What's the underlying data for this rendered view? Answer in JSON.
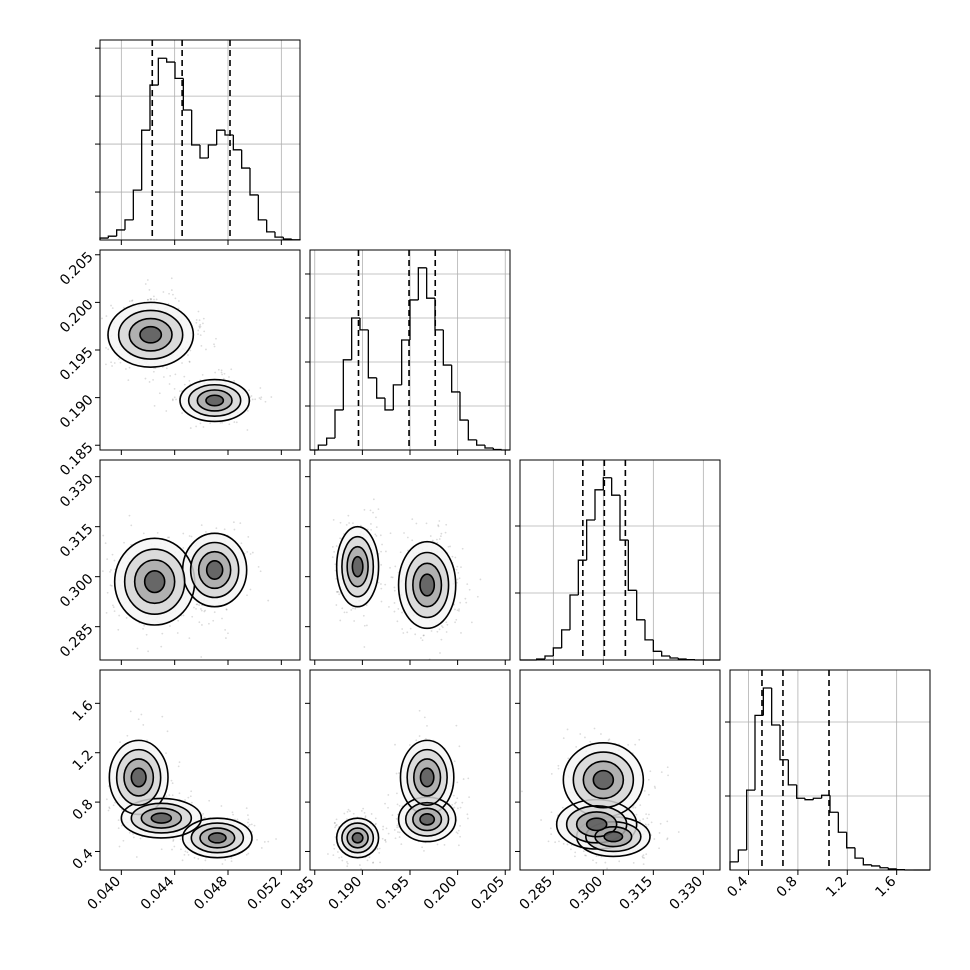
{
  "chart_data": {
    "type": "corner",
    "axes": [
      {
        "lim": [
          0.0384,
          0.0534
        ],
        "ticks": [
          {
            "value": 0.04,
            "label": "0.040"
          },
          {
            "value": 0.044,
            "label": "0.044"
          },
          {
            "value": 0.048,
            "label": "0.048"
          },
          {
            "value": 0.052,
            "label": "0.052"
          }
        ]
      },
      {
        "lim": [
          0.1845,
          0.2055
        ],
        "ticks": [
          0.185,
          {
            "value": 0.19,
            "label": "0.190"
          },
          0.195,
          {
            "value": 0.2,
            "label": "0.200"
          },
          0.205
        ]
      },
      {
        "lim": [
          0.275,
          0.335
        ],
        "ticks": [
          0.285,
          {
            "value": 0.3,
            "label": "0.300"
          },
          0.315,
          {
            "value": 0.33,
            "label": "0.330"
          }
        ]
      },
      {
        "lim": [
          0.25,
          1.87
        ],
        "ticks": [
          0.4,
          0.8,
          1.2,
          1.6
        ]
      }
    ],
    "histograms": [
      {
        "bins": [
          0.0384,
          0.039025,
          0.03965,
          0.040275,
          0.0409,
          0.041525,
          0.04215,
          0.042775,
          0.0434,
          0.044025,
          0.04465,
          0.045275,
          0.0459,
          0.046525,
          0.04715,
          0.047775,
          0.0484,
          0.049025,
          0.04965,
          0.050275,
          0.0509,
          0.051525,
          0.05215,
          0.052775,
          0.0534
        ],
        "counts": [
          40,
          80,
          210,
          420,
          1040,
          2290,
          3230,
          3790,
          3710,
          3370,
          2710,
          1980,
          1710,
          1980,
          2290,
          2190,
          1880,
          1500,
          940,
          420,
          170,
          60,
          20,
          5
        ],
        "ylim": [
          0,
          4170
        ],
        "yticks": [
          1000,
          2000,
          3000,
          4000
        ],
        "quantiles": [
          0.04232,
          0.04456,
          0.04815
        ]
      },
      {
        "bins": [
          0.1845,
          0.185375,
          0.18625,
          0.187125,
          0.188,
          0.188875,
          0.18975,
          0.190625,
          0.1915,
          0.192375,
          0.19325,
          0.194125,
          0.195,
          0.195875,
          0.19675,
          0.197625,
          0.1985,
          0.199375,
          0.20025,
          0.201125,
          0.202,
          0.202875,
          0.20375,
          0.204625,
          0.2055
        ],
        "counts": [
          0,
          110,
          270,
          910,
          2050,
          3000,
          2730,
          1640,
          1180,
          910,
          1480,
          2500,
          3410,
          4140,
          3450,
          2730,
          1930,
          1320,
          680,
          230,
          110,
          45,
          10,
          0
        ],
        "ylim": [
          0,
          4545
        ],
        "yticks": [
          1000,
          2000,
          3000,
          4000
        ],
        "quantiles": [
          0.18959,
          0.1949,
          0.19765
        ]
      },
      {
        "bins": [
          0.275,
          0.2775,
          0.28,
          0.2825,
          0.285,
          0.2875,
          0.29,
          0.2925,
          0.295,
          0.2975,
          0.3,
          0.3025,
          0.305,
          0.3075,
          0.31,
          0.3125,
          0.315,
          0.3175,
          0.32,
          0.3225,
          0.325,
          0.3275,
          0.33,
          0.3325,
          0.335
        ],
        "counts": [
          0,
          0,
          15,
          60,
          180,
          450,
          970,
          1490,
          2090,
          2540,
          2720,
          2460,
          1790,
          1040,
          600,
          300,
          130,
          60,
          30,
          15,
          5,
          0,
          0,
          0
        ],
        "ylim": [
          0,
          2985
        ],
        "yticks": [
          1000,
          2000
        ],
        "quantiles": [
          0.29385,
          0.3003,
          0.30661
        ]
      },
      {
        "bins": [
          0.25,
          0.3175,
          0.385,
          0.4525,
          0.52,
          0.5875,
          0.655,
          0.7225,
          0.79,
          0.8575,
          0.925,
          0.9925,
          1.06,
          1.1275,
          1.195,
          1.2625,
          1.33,
          1.3975,
          1.465,
          1.5325,
          1.6,
          1.6675,
          1.735,
          1.8025,
          1.87
        ],
        "counts": [
          110,
          270,
          1080,
          2090,
          2460,
          1960,
          1490,
          1150,
          970,
          950,
          970,
          1010,
          780,
          510,
          300,
          160,
          70,
          55,
          30,
          15,
          5,
          0,
          0,
          0
        ],
        "ylim": [
          0,
          2703
        ],
        "yticks": [
          1000,
          2000
        ],
        "quantiles": [
          0.509,
          0.679,
          1.052
        ]
      }
    ],
    "panels": [
      {
        "clusters": [
          {
            "x": 0.0422,
            "y": 0.1966,
            "sx": 0.0016,
            "sy": 0.0017,
            "weight": 0.6
          },
          {
            "x": 0.047,
            "y": 0.1897,
            "sx": 0.0013,
            "sy": 0.0011,
            "weight": 0.4
          }
        ]
      },
      {
        "clusters": [
          {
            "x": 0.0425,
            "y": 0.2985,
            "sx": 0.0015,
            "sy": 0.0065,
            "weight": 0.6
          },
          {
            "x": 0.047,
            "y": 0.302,
            "sx": 0.0012,
            "sy": 0.0055,
            "weight": 0.4
          }
        ]
      },
      {
        "clusters": [
          {
            "x": 0.1895,
            "y": 0.303,
            "sx": 0.0011,
            "sy": 0.006,
            "weight": 0.4
          },
          {
            "x": 0.1968,
            "y": 0.2975,
            "sx": 0.0015,
            "sy": 0.0065,
            "weight": 0.6
          }
        ]
      },
      {
        "clusters": [
          {
            "x": 0.0413,
            "y": 1.0,
            "sx": 0.0011,
            "sy": 0.15,
            "weight": 0.25
          },
          {
            "x": 0.043,
            "y": 0.67,
            "sx": 0.0015,
            "sy": 0.08,
            "weight": 0.35
          },
          {
            "x": 0.0472,
            "y": 0.51,
            "sx": 0.0013,
            "sy": 0.08,
            "weight": 0.4
          }
        ]
      },
      {
        "clusters": [
          {
            "x": 0.1895,
            "y": 0.51,
            "sx": 0.0011,
            "sy": 0.08,
            "weight": 0.4
          },
          {
            "x": 0.1968,
            "y": 0.66,
            "sx": 0.0015,
            "sy": 0.09,
            "weight": 0.35
          },
          {
            "x": 0.1968,
            "y": 1.0,
            "sx": 0.0014,
            "sy": 0.15,
            "weight": 0.25
          }
        ]
      },
      {
        "clusters": [
          {
            "x": 0.298,
            "y": 0.62,
            "sx": 0.006,
            "sy": 0.1,
            "weight": 0.35
          },
          {
            "x": 0.3,
            "y": 0.98,
            "sx": 0.006,
            "sy": 0.15,
            "weight": 0.25
          },
          {
            "x": 0.303,
            "y": 0.52,
            "sx": 0.0055,
            "sy": 0.08,
            "weight": 0.4
          }
        ]
      }
    ]
  }
}
